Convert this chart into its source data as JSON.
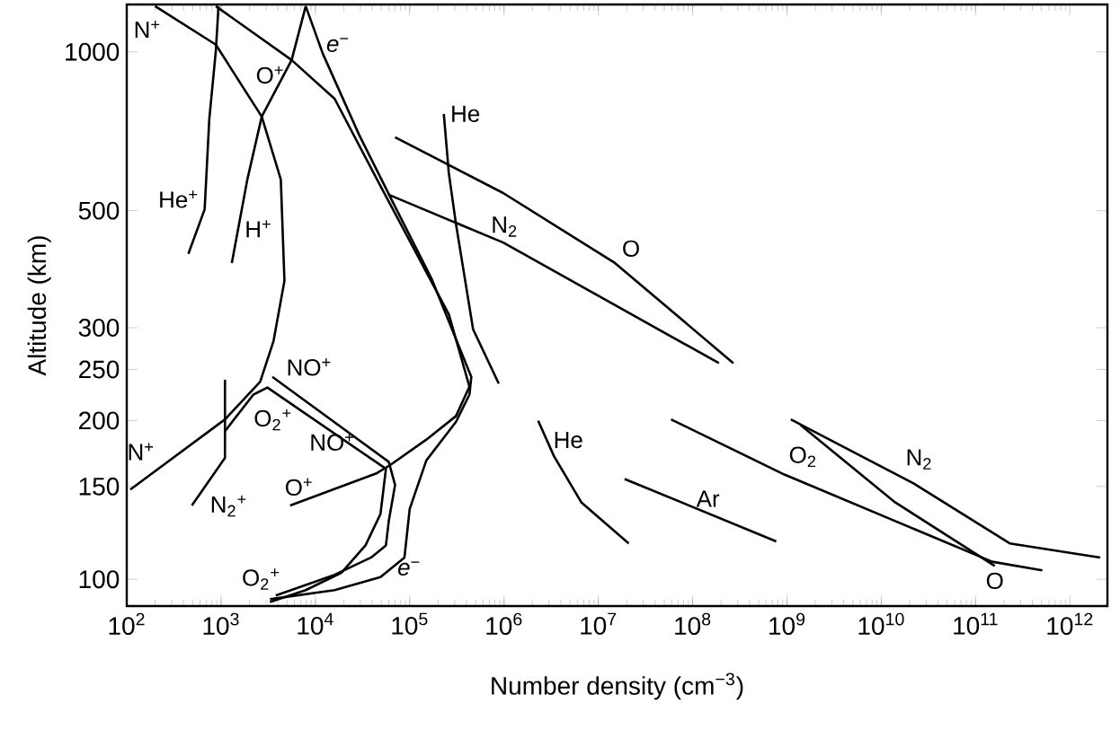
{
  "chart_data": {
    "type": "line",
    "xlabel": "Number density (cm$^{−3}$)",
    "ylabel": "Altitude (km)",
    "log": "xy",
    "marker": "none",
    "line_style": "solid",
    "xlim": [
      100,
      2500000000000.0
    ],
    "ylim": [
      89,
      1230
    ],
    "xticks": [
      {
        "value": 100.0,
        "label": "10$^{2}$"
      },
      {
        "value": 1000.0,
        "label": "10$^{3}$"
      },
      {
        "value": 10000.0,
        "label": "10$^{4}$"
      },
      {
        "value": 100000.0,
        "label": "10$^{5}$"
      },
      {
        "value": 1000000.0,
        "label": "10$^{6}$"
      },
      {
        "value": 10000000.0,
        "label": "10$^{7}$"
      },
      {
        "value": 100000000.0,
        "label": "10$^{8}$"
      },
      {
        "value": 1000000000.0,
        "label": "10$^{9}$"
      },
      {
        "value": 10000000000.0,
        "label": "10$^{10}$"
      },
      {
        "value": 100000000000.0,
        "label": "10$^{11}$"
      },
      {
        "value": 1000000000000.0,
        "label": "10$^{12}$"
      }
    ],
    "yticks": [
      100,
      150,
      200,
      250,
      300,
      500,
      1000
    ],
    "series": [
      {
        "name": "N$^{+}$",
        "color": "#000000",
        "x": [
          109,
          1100.0,
          2600.0,
          3600.0,
          4700.0,
          4300.0,
          2700.0,
          880,
          200
        ],
        "values": [
          148,
          201,
          237,
          283,
          368,
          573,
          754,
          1032,
          1221
        ]
      },
      {
        "name": "He$^{+}$",
        "color": "#000000",
        "x": [
          450,
          670,
          750,
          880,
          940
        ],
        "values": [
          414,
          503,
          745,
          1004,
          1221
        ]
      },
      {
        "name": "H$^{+}$",
        "color": "#000000",
        "x": [
          1300.0,
          1900.0,
          2700.0,
          5600.0,
          7900.0
        ],
        "values": [
          398,
          573,
          754,
          965,
          1221
        ]
      },
      {
        "name": "O$^{+}$",
        "color": "#000000",
        "x": [
          5400.0,
          45000.0,
          63000.0,
          150000.0,
          310000.0,
          430000.0,
          260000.0,
          49000.0,
          16000.0,
          5600.0,
          880
        ],
        "values": [
          138,
          159,
          165,
          184,
          204,
          232,
          318,
          557,
          815,
          965,
          1221
        ]
      },
      {
        "name": "*e*$^{−}$",
        "color": "#000000",
        "x": [
          7900.0,
          12000.0,
          29000.0,
          70000.0,
          170000.0,
          450000.0,
          430000.0,
          310000.0,
          150000.0,
          100000.0,
          88000.0,
          49000.0,
          16000.0,
          3300.0
        ],
        "values": [
          1221,
          992,
          697,
          509,
          372,
          242,
          224,
          199,
          168,
          136,
          110,
          101,
          95.4,
          91.7
        ]
      },
      {
        "name": "NO$^{+}$",
        "color": "#000000",
        "x": [
          3500.0,
          60000.0,
          70000.0,
          60000.0,
          56000.0,
          39000.0,
          16000.0,
          3800.0
        ],
        "values": [
          242,
          167,
          151,
          129,
          116,
          110,
          102,
          93.2
        ]
      },
      {
        "name": "O$_{2}$$^{+}$",
        "color": "#000000",
        "x": [
          1100.0,
          2200.0,
          3100.0,
          56000.0,
          49000.0,
          34000.0,
          19000.0,
          7900.0,
          3300.0
        ],
        "values": [
          191,
          224,
          231,
          162,
          133,
          116,
          103,
          95.4,
          90.6
        ]
      },
      {
        "name": "N$_{2}$$^{+}$",
        "color": "#000000",
        "x": [
          490,
          1100.0,
          1100.0,
          1100.0
        ],
        "values": [
          138,
          170,
          199,
          239
        ]
      },
      {
        "name": "He",
        "color": "#000000",
        "x": [
          230000.0,
          260000.0,
          310000.0,
          470000.0,
          880000.0
        ],
        "values": [
          763,
          589,
          471,
          298,
          235
        ]
      },
      {
        "name": "N$_{2}$",
        "color": "#000000",
        "x": [
          60000.0,
          980000.0,
          190000000.0
        ],
        "values": [
          536,
          435,
          257
        ]
      },
      {
        "name": "O",
        "color": "#000000",
        "x": [
          70000.0,
          980000.0,
          15000000.0,
          270000000.0
        ],
        "values": [
          689,
          540,
          398,
          257
        ]
      },
      {
        "name": "He",
        "color": "#000000",
        "x": [
          2300000.0,
          3400000.0,
          6600000.0,
          21000000.0
        ],
        "values": [
          200,
          171,
          140,
          117
        ]
      },
      {
        "name": "Ar",
        "color": "#000000",
        "x": [
          19000000.0,
          770000000.0
        ],
        "values": [
          155,
          118
        ]
      },
      {
        "name": "O$_{2}$",
        "color": "#000000",
        "x": [
          59000000.0,
          940000000.0,
          150000000000.0,
          510000000000.0
        ],
        "values": [
          201,
          158,
          108,
          104
        ]
      },
      {
        "name": "N$_{2}$",
        "color": "#000000",
        "x": [
          1100000000.0,
          22000000000.0,
          230000000000.0,
          2100000000000.0
        ],
        "values": [
          201,
          152,
          117,
          110
        ]
      },
      {
        "name": "O",
        "color": "#000000",
        "x": [
          1400000000.0,
          14000000000.0,
          160000000000.0
        ],
        "values": [
          196,
          140,
          106
        ]
      }
    ]
  }
}
